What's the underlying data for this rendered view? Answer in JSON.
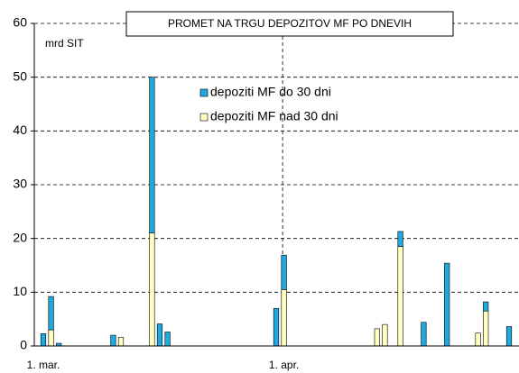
{
  "chart_data": {
    "type": "stacked_bar",
    "title": "PROMET NA TRGU DEPOZITOV MF PO DNEVIH",
    "y_label": "mrd SIT",
    "categories": [
      "1. mar.",
      null,
      null,
      null,
      null,
      null,
      null,
      null,
      null,
      null,
      null,
      null,
      null,
      null,
      null,
      null,
      null,
      null,
      null,
      null,
      null,
      null,
      null,
      null,
      null,
      null,
      null,
      null,
      null,
      null,
      null,
      "1. apr.",
      null,
      null,
      null,
      null,
      null,
      null,
      null,
      null,
      null,
      null,
      null,
      null,
      null,
      null,
      null,
      null,
      null,
      null,
      null,
      null,
      null,
      null,
      null,
      null,
      null,
      null,
      null,
      null,
      null,
      null
    ],
    "series": [
      {
        "name": "depoziti MF do 30 dni",
        "color": "#1fa9e1",
        "values": [
          2.3,
          6.2,
          0.5,
          0,
          0,
          0,
          0,
          0,
          0,
          2.0,
          0,
          0,
          0,
          0,
          29,
          4.1,
          2.6,
          0,
          0,
          0,
          0,
          0,
          0,
          0,
          0,
          0,
          0,
          0,
          0,
          0,
          7,
          6.4,
          0,
          0,
          0,
          0,
          0,
          0,
          0,
          0,
          0,
          0,
          0,
          0,
          0,
          0,
          2.8,
          0,
          0,
          4.4,
          0,
          0,
          15.4,
          0,
          0,
          0,
          0,
          1.7,
          0,
          0,
          3.6,
          0
        ]
      },
      {
        "name": "depoziti MF nad 30 dni",
        "color": "#ffffc0",
        "values": [
          0,
          3,
          0,
          0,
          0,
          0,
          0,
          0,
          0,
          0,
          1.6,
          0,
          0,
          0,
          21,
          0,
          0,
          0,
          0,
          0,
          0,
          0,
          0,
          0,
          0,
          0,
          0,
          0,
          0,
          0,
          0,
          10.5,
          0,
          0,
          0,
          0,
          0,
          0,
          0,
          0,
          0,
          0,
          0,
          3.2,
          4,
          0,
          18.5,
          0,
          0,
          0,
          0,
          0,
          0,
          0,
          0,
          0,
          2.4,
          6.5,
          0,
          0,
          0,
          0
        ]
      }
    ],
    "ylim": [
      0,
      60
    ],
    "yticks": [
      0,
      10,
      20,
      30,
      40,
      50,
      60
    ],
    "grid": true
  }
}
